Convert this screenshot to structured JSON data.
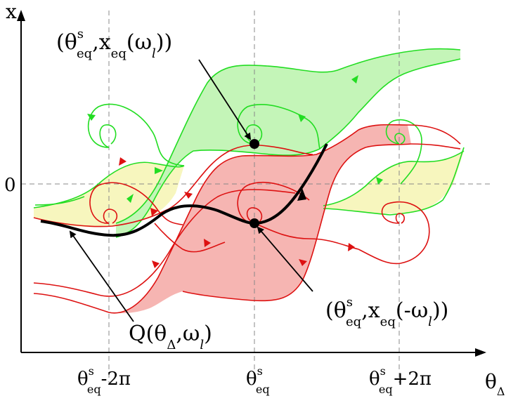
{
  "axes": {
    "y_label": "x",
    "x_label_main": "θ",
    "x_label_sub": "Δ",
    "zero_label": "0"
  },
  "ticks": [
    {
      "main": "θ",
      "sup": "s",
      "sub": "eq",
      "suffix": "-2π"
    },
    {
      "main": "θ",
      "sup": "s",
      "sub": "eq",
      "suffix": ""
    },
    {
      "main": "θ",
      "sup": "s",
      "sub": "eq",
      "suffix": "+2π"
    }
  ],
  "annotations": {
    "top_point": {
      "open": "(θ",
      "sup": "s",
      "sub": "eq",
      "mid": ",x",
      "sub2": "eq",
      "arg_open": "(ω",
      "arg_sub": "l",
      "close": "))"
    },
    "bottom_point": {
      "open": "(θ",
      "sup": "s",
      "sub": "eq",
      "mid": ",x",
      "sub2": "eq",
      "arg_open": "(-ω",
      "arg_sub": "l",
      "close": "))"
    },
    "curve": {
      "open": "Q(θ",
      "sub": "Δ",
      "mid": ",ω",
      "sub2": "l",
      "close": ")"
    }
  },
  "colors": {
    "green_region": "#c4f5b8",
    "red_region": "#f6b5b2",
    "yellow_region": "#f7f6be",
    "green_curve": "#22dd22",
    "red_curve": "#dd1111",
    "grid": "#888888"
  }
}
